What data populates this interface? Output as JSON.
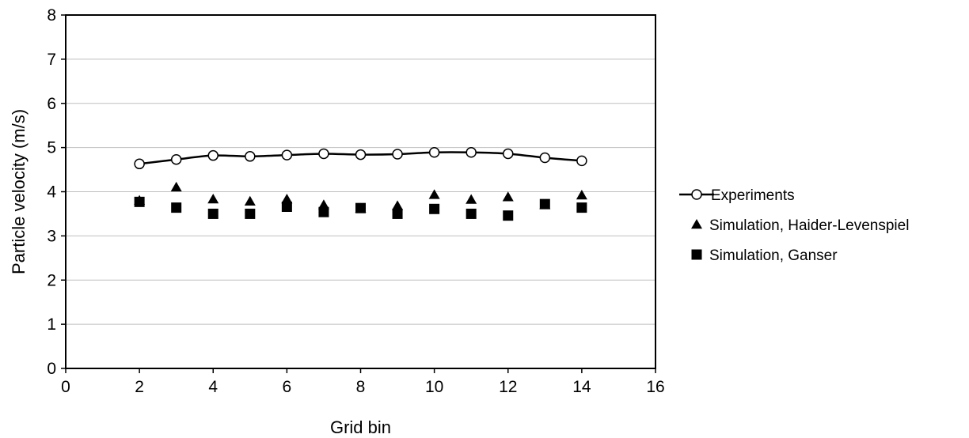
{
  "chart_data": {
    "type": "scatter",
    "title": "",
    "xlabel": "Grid bin",
    "ylabel": "Particle velocity (m/s)",
    "xlim": [
      0,
      16
    ],
    "ylim": [
      0,
      8
    ],
    "xticks": [
      0,
      2,
      4,
      6,
      8,
      10,
      12,
      14,
      16
    ],
    "yticks": [
      0,
      1,
      2,
      3,
      4,
      5,
      6,
      7,
      8
    ],
    "grid": "horizontal",
    "legend_position": "right",
    "series": [
      {
        "name": "Experiments",
        "marker": "open-circle",
        "line": true,
        "x": [
          2,
          3,
          4,
          5,
          6,
          7,
          8,
          9,
          10,
          11,
          12,
          13,
          14
        ],
        "y": [
          4.63,
          4.73,
          4.82,
          4.8,
          4.83,
          4.86,
          4.84,
          4.85,
          4.89,
          4.89,
          4.86,
          4.77,
          4.7
        ]
      },
      {
        "name": "Simulation, Haider-Levenspiel",
        "marker": "filled-triangle",
        "line": false,
        "x": [
          2,
          3,
          4,
          5,
          6,
          7,
          8,
          9,
          10,
          11,
          12,
          13,
          14
        ],
        "y": [
          3.8,
          4.1,
          3.83,
          3.78,
          3.83,
          3.7,
          3.62,
          3.68,
          3.93,
          3.82,
          3.88,
          3.7,
          3.92
        ]
      },
      {
        "name": "Simulation, Ganser",
        "marker": "filled-square",
        "line": false,
        "x": [
          2,
          3,
          4,
          5,
          6,
          7,
          8,
          9,
          10,
          11,
          12,
          13,
          14
        ],
        "y": [
          3.77,
          3.64,
          3.5,
          3.5,
          3.66,
          3.54,
          3.63,
          3.5,
          3.61,
          3.5,
          3.46,
          3.72,
          3.64
        ]
      }
    ]
  }
}
